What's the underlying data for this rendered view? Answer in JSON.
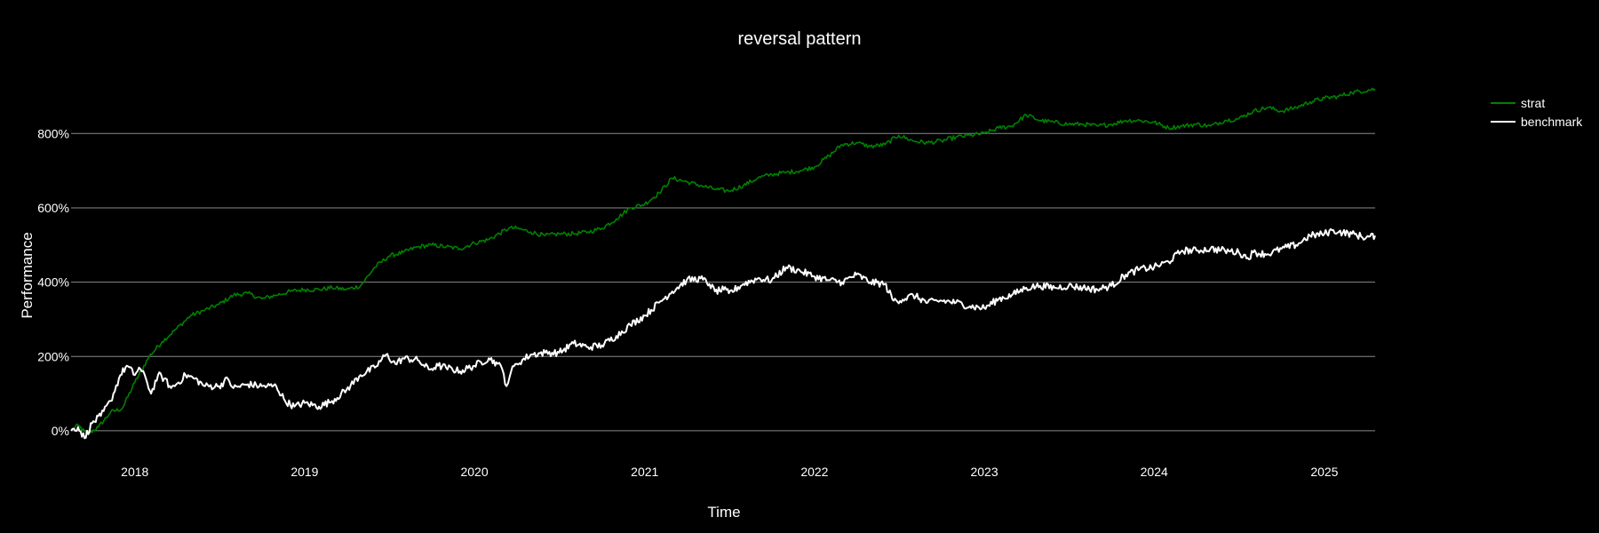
{
  "chart_data": {
    "type": "line",
    "title": "reversal pattern",
    "xlabel": "Time",
    "ylabel": "Performance",
    "x_ticks": [
      "2018",
      "2019",
      "2020",
      "2021",
      "2022",
      "2023",
      "2024",
      "2025"
    ],
    "x_tick_dates": [
      "2018-01-01",
      "2019-01-01",
      "2020-01-01",
      "2021-01-01",
      "2022-01-01",
      "2023-01-01",
      "2024-01-01",
      "2025-01-01"
    ],
    "y_ticks": [
      "0%",
      "200%",
      "400%",
      "600%",
      "800%"
    ],
    "y_tick_values": [
      0,
      200,
      400,
      600,
      800
    ],
    "xlim": [
      "2017-08-17",
      "2025-04-20"
    ],
    "ylim": [
      -60,
      980
    ],
    "grid": "horizontal",
    "legend_position": "top-right",
    "series": [
      {
        "name": "strat",
        "color": "#008000",
        "points": [
          [
            "2017-08-17",
            0
          ],
          [
            "2017-09-01",
            15
          ],
          [
            "2017-09-20",
            -10
          ],
          [
            "2017-10-15",
            10
          ],
          [
            "2017-11-10",
            50
          ],
          [
            "2017-12-05",
            60
          ],
          [
            "2018-01-01",
            130
          ],
          [
            "2018-02-01",
            200
          ],
          [
            "2018-03-01",
            240
          ],
          [
            "2018-04-01",
            275
          ],
          [
            "2018-05-01",
            310
          ],
          [
            "2018-06-01",
            325
          ],
          [
            "2018-07-01",
            340
          ],
          [
            "2018-08-01",
            365
          ],
          [
            "2018-09-01",
            370
          ],
          [
            "2018-10-01",
            355
          ],
          [
            "2018-11-01",
            365
          ],
          [
            "2018-12-01",
            375
          ],
          [
            "2019-01-01",
            380
          ],
          [
            "2019-02-01",
            380
          ],
          [
            "2019-03-01",
            385
          ],
          [
            "2019-04-01",
            380
          ],
          [
            "2019-05-01",
            390
          ],
          [
            "2019-06-01",
            440
          ],
          [
            "2019-07-01",
            470
          ],
          [
            "2019-08-01",
            480
          ],
          [
            "2019-09-01",
            495
          ],
          [
            "2019-10-01",
            500
          ],
          [
            "2019-11-01",
            495
          ],
          [
            "2019-12-01",
            490
          ],
          [
            "2020-01-01",
            505
          ],
          [
            "2020-02-01",
            515
          ],
          [
            "2020-03-15",
            545
          ],
          [
            "2020-04-01",
            545
          ],
          [
            "2020-05-01",
            535
          ],
          [
            "2020-06-01",
            525
          ],
          [
            "2020-07-01",
            530
          ],
          [
            "2020-08-01",
            530
          ],
          [
            "2020-09-01",
            535
          ],
          [
            "2020-10-01",
            545
          ],
          [
            "2020-11-01",
            570
          ],
          [
            "2020-12-01",
            600
          ],
          [
            "2021-01-01",
            610
          ],
          [
            "2021-02-01",
            640
          ],
          [
            "2021-03-01",
            680
          ],
          [
            "2021-04-01",
            670
          ],
          [
            "2021-05-01",
            660
          ],
          [
            "2021-06-01",
            650
          ],
          [
            "2021-07-01",
            645
          ],
          [
            "2021-08-01",
            660
          ],
          [
            "2021-09-01",
            680
          ],
          [
            "2021-10-01",
            690
          ],
          [
            "2021-11-01",
            695
          ],
          [
            "2021-12-01",
            700
          ],
          [
            "2022-01-01",
            710
          ],
          [
            "2022-02-01",
            740
          ],
          [
            "2022-03-01",
            770
          ],
          [
            "2022-04-01",
            775
          ],
          [
            "2022-05-01",
            765
          ],
          [
            "2022-06-01",
            770
          ],
          [
            "2022-07-01",
            795
          ],
          [
            "2022-08-01",
            780
          ],
          [
            "2022-09-01",
            775
          ],
          [
            "2022-10-01",
            780
          ],
          [
            "2022-11-01",
            790
          ],
          [
            "2022-12-01",
            795
          ],
          [
            "2023-01-01",
            800
          ],
          [
            "2023-02-01",
            815
          ],
          [
            "2023-03-01",
            820
          ],
          [
            "2023-04-01",
            850
          ],
          [
            "2023-05-01",
            835
          ],
          [
            "2023-06-01",
            830
          ],
          [
            "2023-07-01",
            825
          ],
          [
            "2023-08-01",
            825
          ],
          [
            "2023-09-01",
            820
          ],
          [
            "2023-10-01",
            825
          ],
          [
            "2023-11-01",
            835
          ],
          [
            "2023-12-01",
            835
          ],
          [
            "2024-01-01",
            830
          ],
          [
            "2024-02-01",
            815
          ],
          [
            "2024-03-01",
            820
          ],
          [
            "2024-04-01",
            825
          ],
          [
            "2024-05-01",
            820
          ],
          [
            "2024-06-01",
            835
          ],
          [
            "2024-07-01",
            840
          ],
          [
            "2024-08-01",
            860
          ],
          [
            "2024-09-01",
            870
          ],
          [
            "2024-10-01",
            860
          ],
          [
            "2024-11-01",
            870
          ],
          [
            "2024-12-01",
            885
          ],
          [
            "2025-01-01",
            895
          ],
          [
            "2025-02-01",
            900
          ],
          [
            "2025-03-01",
            910
          ],
          [
            "2025-04-20",
            920
          ]
        ]
      },
      {
        "name": "benchmark",
        "color": "#ffffff",
        "points": [
          [
            "2017-08-17",
            0
          ],
          [
            "2017-09-01",
            10
          ],
          [
            "2017-09-15",
            -20
          ],
          [
            "2017-10-01",
            20
          ],
          [
            "2017-10-20",
            40
          ],
          [
            "2017-11-10",
            80
          ],
          [
            "2017-12-01",
            150
          ],
          [
            "2017-12-15",
            175
          ],
          [
            "2018-01-01",
            150
          ],
          [
            "2018-01-10",
            170
          ],
          [
            "2018-01-25",
            140
          ],
          [
            "2018-02-05",
            100
          ],
          [
            "2018-02-20",
            150
          ],
          [
            "2018-03-05",
            140
          ],
          [
            "2018-03-20",
            115
          ],
          [
            "2018-04-05",
            130
          ],
          [
            "2018-04-20",
            150
          ],
          [
            "2018-05-10",
            140
          ],
          [
            "2018-06-01",
            120
          ],
          [
            "2018-07-01",
            120
          ],
          [
            "2018-07-20",
            140
          ],
          [
            "2018-08-01",
            115
          ],
          [
            "2018-09-01",
            125
          ],
          [
            "2018-10-01",
            120
          ],
          [
            "2018-11-01",
            120
          ],
          [
            "2018-11-20",
            80
          ],
          [
            "2018-12-10",
            65
          ],
          [
            "2019-01-01",
            75
          ],
          [
            "2019-02-01",
            65
          ],
          [
            "2019-03-01",
            80
          ],
          [
            "2019-04-01",
            110
          ],
          [
            "2019-05-01",
            150
          ],
          [
            "2019-06-01",
            170
          ],
          [
            "2019-06-25",
            205
          ],
          [
            "2019-07-15",
            180
          ],
          [
            "2019-08-01",
            195
          ],
          [
            "2019-09-01",
            190
          ],
          [
            "2019-09-25",
            165
          ],
          [
            "2019-10-15",
            175
          ],
          [
            "2019-11-01",
            170
          ],
          [
            "2019-12-01",
            160
          ],
          [
            "2020-01-01",
            175
          ],
          [
            "2020-02-01",
            195
          ],
          [
            "2020-02-20",
            180
          ],
          [
            "2020-03-01",
            165
          ],
          [
            "2020-03-10",
            120
          ],
          [
            "2020-03-20",
            160
          ],
          [
            "2020-04-01",
            180
          ],
          [
            "2020-05-01",
            205
          ],
          [
            "2020-06-01",
            210
          ],
          [
            "2020-07-01",
            210
          ],
          [
            "2020-08-01",
            235
          ],
          [
            "2020-09-01",
            225
          ],
          [
            "2020-10-01",
            230
          ],
          [
            "2020-11-01",
            255
          ],
          [
            "2020-12-01",
            285
          ],
          [
            "2021-01-01",
            310
          ],
          [
            "2021-02-01",
            345
          ],
          [
            "2021-03-01",
            375
          ],
          [
            "2021-04-01",
            405
          ],
          [
            "2021-05-01",
            410
          ],
          [
            "2021-05-20",
            395
          ],
          [
            "2021-06-01",
            375
          ],
          [
            "2021-06-20",
            380
          ],
          [
            "2021-07-01",
            370
          ],
          [
            "2021-08-01",
            395
          ],
          [
            "2021-09-01",
            410
          ],
          [
            "2021-10-01",
            405
          ],
          [
            "2021-11-01",
            440
          ],
          [
            "2021-12-01",
            430
          ],
          [
            "2022-01-01",
            415
          ],
          [
            "2022-02-01",
            405
          ],
          [
            "2022-03-01",
            400
          ],
          [
            "2022-04-01",
            420
          ],
          [
            "2022-05-01",
            400
          ],
          [
            "2022-06-01",
            395
          ],
          [
            "2022-06-20",
            350
          ],
          [
            "2022-07-15",
            355
          ],
          [
            "2022-08-01",
            365
          ],
          [
            "2022-09-01",
            345
          ],
          [
            "2022-10-01",
            350
          ],
          [
            "2022-11-01",
            345
          ],
          [
            "2022-12-01",
            335
          ],
          [
            "2023-01-01",
            330
          ],
          [
            "2023-02-01",
            355
          ],
          [
            "2023-03-01",
            365
          ],
          [
            "2023-04-01",
            385
          ],
          [
            "2023-05-01",
            390
          ],
          [
            "2023-06-01",
            385
          ],
          [
            "2023-07-01",
            390
          ],
          [
            "2023-08-01",
            385
          ],
          [
            "2023-09-01",
            380
          ],
          [
            "2023-10-01",
            390
          ],
          [
            "2023-11-01",
            420
          ],
          [
            "2023-12-01",
            435
          ],
          [
            "2024-01-01",
            440
          ],
          [
            "2024-02-01",
            455
          ],
          [
            "2024-03-01",
            485
          ],
          [
            "2024-04-01",
            485
          ],
          [
            "2024-05-01",
            490
          ],
          [
            "2024-06-01",
            485
          ],
          [
            "2024-07-01",
            480
          ],
          [
            "2024-07-20",
            465
          ],
          [
            "2024-08-01",
            480
          ],
          [
            "2024-09-01",
            475
          ],
          [
            "2024-10-01",
            490
          ],
          [
            "2024-11-01",
            500
          ],
          [
            "2024-12-01",
            525
          ],
          [
            "2025-01-01",
            530
          ],
          [
            "2025-01-20",
            540
          ],
          [
            "2025-02-01",
            535
          ],
          [
            "2025-03-01",
            530
          ],
          [
            "2025-04-01",
            520
          ],
          [
            "2025-04-20",
            525
          ]
        ]
      }
    ]
  }
}
